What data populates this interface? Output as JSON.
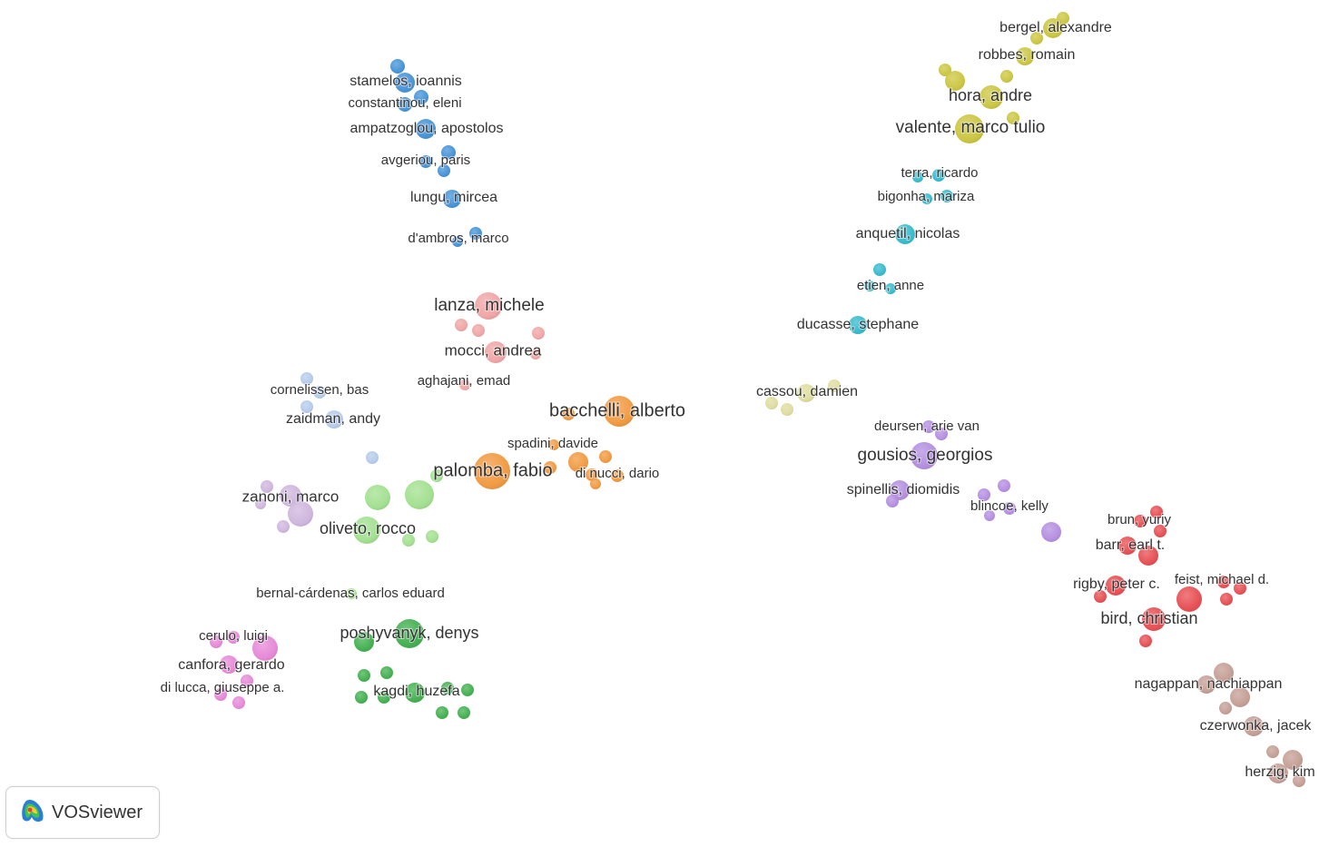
{
  "app": {
    "name": "VOSviewer",
    "logo_icon": "vosviewer-logo-icon"
  },
  "clusters": {
    "blue": "#3f8fd6",
    "yellow": "#c9c43a",
    "cyan": "#2fb8cc",
    "pink": "#f0a2a2",
    "lightblue": "#b3c9ea",
    "orange": "#f1963a",
    "lightyellow": "#dedb9a",
    "purple": "#b28ae0",
    "lavender": "#cdb3dc",
    "lightgreen": "#9fdf8c",
    "green": "#3cad4a",
    "magenta": "#e584d6",
    "red": "#e6484c",
    "brown": "#c29b91"
  },
  "labels": {
    "stamelos": "stamelos, ioannis",
    "constantinou": "constantinou, eleni",
    "ampatzoglou": "ampatzoglou, apostolos",
    "avgeriou": "avgeriou, paris",
    "lungu": "lungu, mircea",
    "dambros": "d'ambros, marco",
    "lanza": "lanza, michele",
    "mocci": "mocci, andrea",
    "aghajani": "aghajani, emad",
    "cornelissen": "cornelissen, bas",
    "zaidman": "zaidman, andy",
    "bacchelli": "bacchelli, alberto",
    "spadini": "spadini, davide",
    "palomba": "palomba, fabio",
    "dinucci": "di nucci, dario",
    "zanoni": "zanoni, marco",
    "oliveto": "oliveto, rocco",
    "bernal": "bernal-cárdenas, carlos eduard",
    "poshyvanyk": "poshyvanyk, denys",
    "kagdi": "kagdi, huzefa",
    "cerulo": "cerulo, luigi",
    "canfora": "canfora, gerardo",
    "dilucca": "di lucca, giuseppe a.",
    "bergel": "bergel, alexandre",
    "robbes": "robbes, romain",
    "hora": "hora, andre",
    "valente": "valente, marco tulio",
    "terra": "terra, ricardo",
    "bigonha": "bigonha, mariza",
    "anquetil": "anquetil, nicolas",
    "etien": "etien, anne",
    "ducasse": "ducasse, stephane",
    "cassou": "cassou, damien",
    "deursen": "deursen, arie van",
    "gousios": "gousios, georgios",
    "spinellis": "spinellis, diomidis",
    "blincoe": "blincoe, kelly",
    "brun": "brun, yuriy",
    "barr": "barr, earl t.",
    "rigby": "rigby, peter c.",
    "feist": "feist, michael d.",
    "bird": "bird, christian",
    "nagappan": "nagappan, nachiappan",
    "czerwonka": "czerwonka, jacek",
    "herzig": "herzig, kim"
  }
}
